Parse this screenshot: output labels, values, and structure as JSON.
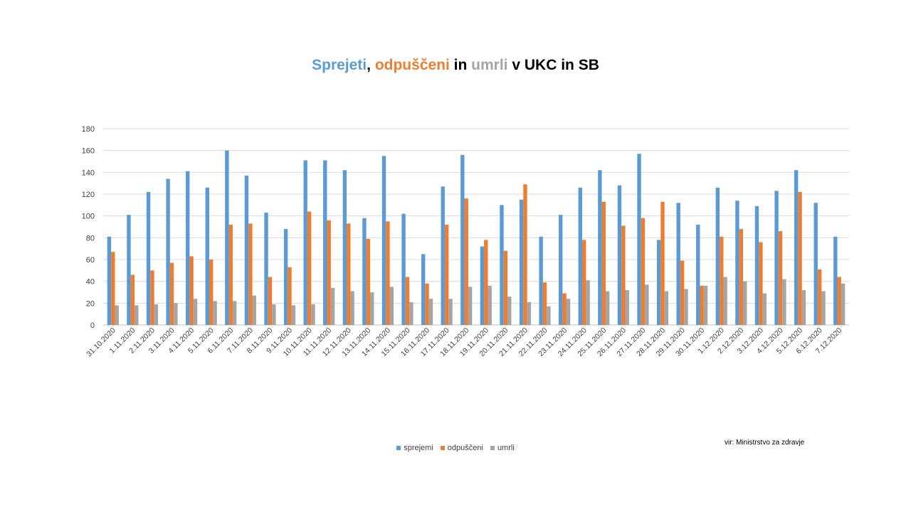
{
  "title": {
    "part1": "Sprejeti",
    "sep1": ", ",
    "part2": "odpuščeni",
    "sep2": " in ",
    "part3": "umrli",
    "rest": " v UKC in SB"
  },
  "colors": {
    "sprejemi": "#5b9bd5",
    "odpusceni": "#ed7d31",
    "umrli": "#a5a5a5",
    "grid": "#d9d9d9",
    "axis_text": "#404040"
  },
  "source_note": "vir: Ministrstvo za zdravje",
  "chart_data": {
    "type": "bar",
    "title": "Sprejeti, odpuščeni in umrli v UKC in SB",
    "ylim": [
      0,
      180
    ],
    "yticks": [
      0,
      20,
      40,
      60,
      80,
      100,
      120,
      140,
      160,
      180
    ],
    "grid": true,
    "legend_position": "bottom",
    "categories": [
      "31.10.2020",
      "1.11.2020",
      "2.11.2020",
      "3.11.2020",
      "4.11.2020",
      "5.11.2020",
      "6.11.2020",
      "7.11.2020",
      "8.11.2020",
      "9.11.2020",
      "10.11.2020",
      "11.11.2020",
      "12.11.2020",
      "13.11.2020",
      "14.11.2020",
      "15.11.2020",
      "16.11.2020",
      "17.11.2020",
      "18.11.2020",
      "19.11.2020",
      "20.11.2020",
      "21.11.2020",
      "22.11.2020",
      "23.11.2020",
      "24.11.2020",
      "25.11.2020",
      "26.11.2020",
      "27.11.2020",
      "28.11.2020",
      "29.11.2020",
      "30.11.2020",
      "1.12.2020",
      "2.12.2020",
      "3.12.2020",
      "4.12.2020",
      "5.12.2020",
      "6.12.2020",
      "7.12.2020"
    ],
    "series": [
      {
        "name": "sprejemi",
        "values": [
          81,
          101,
          122,
          134,
          141,
          126,
          160,
          137,
          103,
          88,
          151,
          151,
          142,
          98,
          155,
          102,
          65,
          127,
          156,
          72,
          110,
          115,
          81,
          101,
          126,
          142,
          128,
          157,
          78,
          112,
          92,
          126,
          114,
          109,
          123,
          142,
          112,
          81
        ]
      },
      {
        "name": "odpuščeni",
        "values": [
          67,
          46,
          50,
          57,
          63,
          60,
          92,
          93,
          44,
          53,
          104,
          96,
          93,
          79,
          95,
          44,
          38,
          92,
          116,
          78,
          68,
          129,
          39,
          29,
          78,
          113,
          91,
          98,
          113,
          59,
          36,
          81,
          88,
          76,
          86,
          122,
          51,
          44
        ]
      },
      {
        "name": "umrli",
        "values": [
          18,
          18,
          19,
          20,
          24,
          22,
          22,
          27,
          19,
          18,
          19,
          34,
          31,
          30,
          35,
          21,
          24,
          24,
          35,
          36,
          26,
          21,
          17,
          24,
          41,
          31,
          32,
          37,
          31,
          33,
          36,
          44,
          40,
          29,
          42,
          32,
          31,
          38
        ]
      }
    ]
  }
}
